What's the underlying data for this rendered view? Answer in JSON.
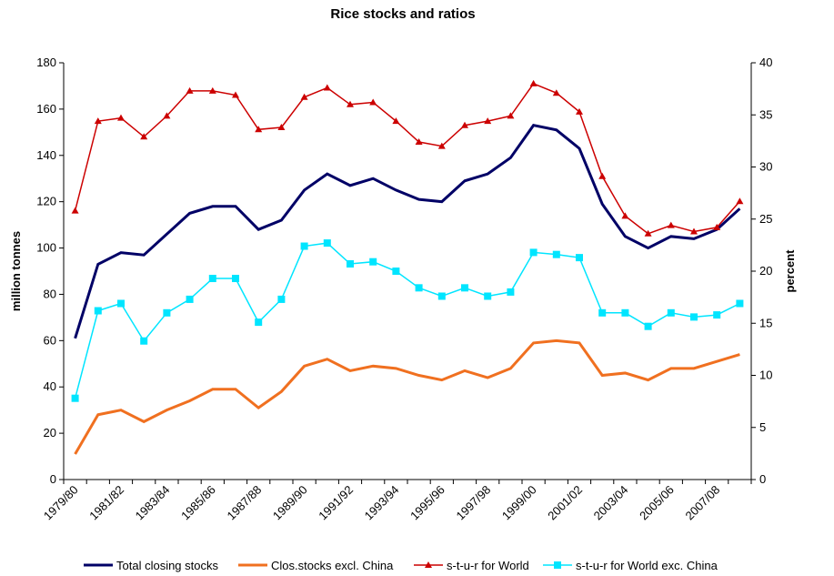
{
  "chart_data": {
    "type": "line",
    "title": "Rice stocks and ratios",
    "y_label": "million tonnes",
    "y2_label": "percent",
    "categories": [
      "1979/80",
      null,
      "1981/82",
      null,
      "1983/84",
      null,
      "1985/86",
      null,
      "1987/88",
      null,
      "1989/90",
      null,
      "1991/92",
      null,
      "1993/94",
      null,
      "1995/96",
      null,
      "1997/98",
      null,
      "1999/00",
      null,
      "2001/02",
      null,
      "2003/04",
      null,
      "2005/06",
      null,
      "2007/08",
      null
    ],
    "ylim": [
      0,
      180
    ],
    "yticks": [
      0,
      20,
      40,
      60,
      80,
      100,
      120,
      140,
      160,
      180
    ],
    "y2lim": [
      0,
      40
    ],
    "y2ticks": [
      0,
      5,
      10,
      15,
      20,
      25,
      30,
      35,
      40
    ],
    "grid": false,
    "legend": "bottom",
    "series": [
      {
        "name": "Total closing stocks",
        "color": "#000066",
        "marker": "none",
        "values": [
          61,
          93,
          98,
          97,
          106,
          115,
          118,
          118,
          108,
          112,
          125,
          132,
          127,
          130,
          125,
          121,
          120,
          129,
          132,
          139,
          153,
          151,
          143,
          119,
          105,
          100,
          105,
          104,
          108,
          117
        ]
      },
      {
        "name": "Clos.stocks excl. China",
        "color": "#f07020",
        "marker": "none",
        "values": [
          11,
          28,
          30,
          25,
          30,
          34,
          39,
          39,
          31,
          38,
          49,
          52,
          47,
          49,
          48,
          45,
          43,
          47,
          44,
          48,
          59,
          60,
          59,
          45,
          46,
          43,
          48,
          48,
          51,
          54
        ]
      },
      {
        "name": "s-t-u-r for World",
        "color": "#cc0000",
        "marker": "triangle",
        "axis": "y2",
        "values": [
          25.8,
          34.4,
          34.7,
          32.9,
          34.9,
          37.3,
          37.3,
          36.9,
          33.6,
          33.8,
          36.7,
          37.6,
          36.0,
          36.2,
          34.4,
          32.4,
          32.0,
          34.0,
          34.4,
          34.9,
          38.0,
          37.1,
          35.3,
          29.1,
          25.3,
          23.6,
          24.4,
          23.8,
          24.2,
          26.7
        ]
      },
      {
        "name": "s-t-u-r for World exc. China",
        "color": "#00e5ff",
        "marker": "square",
        "axis": "y2",
        "values": [
          7.8,
          16.2,
          16.9,
          13.3,
          16.0,
          17.3,
          19.3,
          19.3,
          15.1,
          17.3,
          22.4,
          22.7,
          20.7,
          20.9,
          20.0,
          18.4,
          17.6,
          18.4,
          17.6,
          18.0,
          21.8,
          21.6,
          21.3,
          16.0,
          16.0,
          14.7,
          16.0,
          15.6,
          15.8,
          16.9
        ]
      }
    ]
  }
}
